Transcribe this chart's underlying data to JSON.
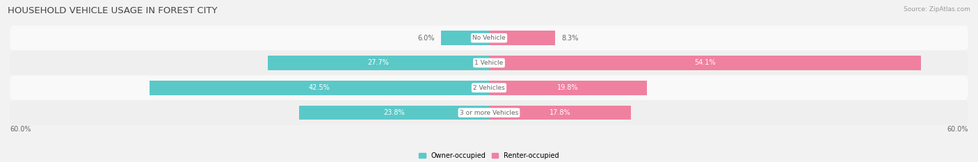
{
  "title": "HOUSEHOLD VEHICLE USAGE IN FOREST CITY",
  "source": "Source: ZipAtlas.com",
  "categories": [
    "No Vehicle",
    "1 Vehicle",
    "2 Vehicles",
    "3 or more Vehicles"
  ],
  "owner_values": [
    6.0,
    27.7,
    42.5,
    23.8
  ],
  "renter_values": [
    8.3,
    54.1,
    19.8,
    17.8
  ],
  "max_val": 60.0,
  "owner_color": "#5bc8c8",
  "renter_color": "#f080a0",
  "bg_color": "#f2f2f2",
  "row_colors": [
    "#f9f9f9",
    "#efefef",
    "#f9f9f9",
    "#efefef"
  ],
  "label_color_dark": "#666666",
  "label_color_white": "#ffffff",
  "title_fontsize": 9.5,
  "source_fontsize": 6.5,
  "bar_label_fontsize": 7,
  "category_fontsize": 6.5,
  "axis_label_fontsize": 7,
  "legend_fontsize": 7,
  "x_axis_label_left": "60.0%",
  "x_axis_label_right": "60.0%",
  "owner_label": "Owner-occupied",
  "renter_label": "Renter-occupied"
}
